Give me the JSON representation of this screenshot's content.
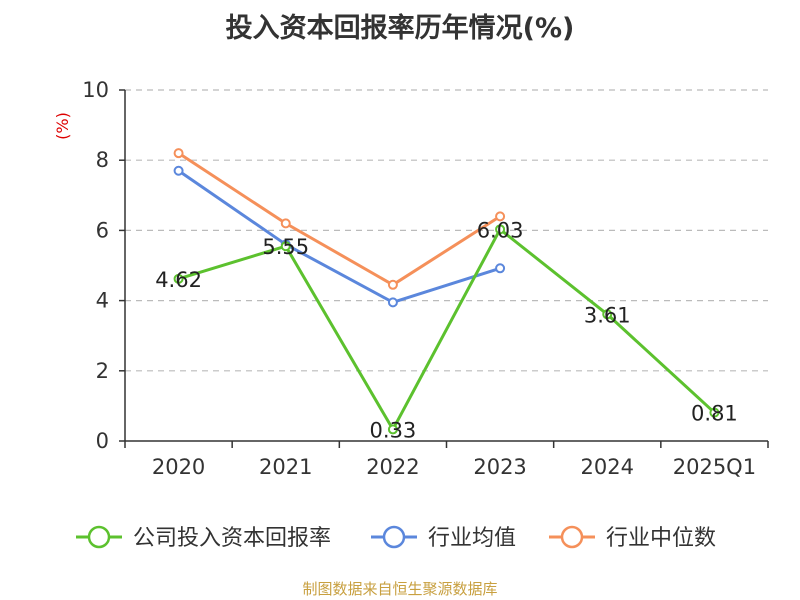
{
  "chart_data": {
    "type": "line",
    "title": "投入资本回报率历年情况(%)",
    "ylabel": "(%)",
    "categories": [
      "2020",
      "2021",
      "2022",
      "2023",
      "2024",
      "2025Q1"
    ],
    "ylim": [
      0,
      10
    ],
    "yticks": [
      0,
      2,
      4,
      6,
      8,
      10
    ],
    "grid": true,
    "legend_position": "bottom",
    "series": [
      {
        "name": "公司投入资本回报率",
        "color": "#5cc12e",
        "values": [
          4.62,
          5.55,
          0.33,
          6.03,
          3.61,
          0.81
        ],
        "show_labels": true
      },
      {
        "name": "行业均值",
        "color": "#5b87dc",
        "values": [
          7.7,
          5.6,
          3.95,
          4.92,
          null,
          null
        ],
        "show_labels": false
      },
      {
        "name": "行业中位数",
        "color": "#f5905a",
        "values": [
          8.2,
          6.2,
          4.45,
          6.4,
          null,
          null
        ],
        "show_labels": false
      }
    ]
  },
  "footer": "制图数据来自恒生聚源数据库"
}
